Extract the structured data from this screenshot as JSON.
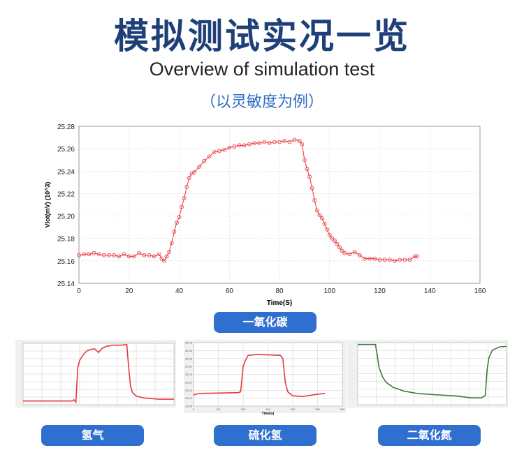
{
  "header": {
    "title": "模拟测试实况一览",
    "subtitle": "Overview of simulation test",
    "note": "（以灵敏度为例）"
  },
  "labels": {
    "main": "一氧化碳",
    "h2": "氢气",
    "h2s": "硫化氢",
    "no2": "二氧化氮"
  },
  "colors": {
    "title": "#1f3f78",
    "button": "#2f6fd0",
    "red_series": "#e8383d",
    "green_series": "#3d7a3a"
  },
  "chart_data": [
    {
      "type": "line",
      "marker": "circle-open",
      "xlabel": "Time(S)",
      "ylabel": "Vlot(mV) (10^3)",
      "xlim": [
        0,
        160
      ],
      "ylim": [
        25.14,
        25.28
      ],
      "grid": true,
      "xticks": [
        "0",
        "20",
        "40",
        "60",
        "80",
        "100",
        "120",
        "140",
        "160"
      ],
      "yticks": [
        "25.14",
        "25.16",
        "25.18",
        "25.20",
        "25.22",
        "25.24",
        "25.26",
        "25.28"
      ],
      "x": [
        0,
        2,
        4,
        6,
        8,
        10,
        12,
        14,
        16,
        18,
        20,
        22,
        24,
        26,
        28,
        30,
        32,
        33,
        34,
        35,
        36,
        37,
        38,
        39,
        40,
        41,
        42,
        43,
        44,
        45,
        46,
        48,
        50,
        52,
        54,
        56,
        58,
        60,
        62,
        64,
        66,
        68,
        70,
        72,
        74,
        76,
        78,
        80,
        82,
        84,
        86,
        88,
        89,
        90,
        91,
        92,
        93,
        94,
        95,
        96,
        97,
        98,
        99,
        100,
        101,
        102,
        103,
        104,
        105,
        106,
        108,
        110,
        112,
        114,
        116,
        118,
        120,
        122,
        124,
        126,
        128,
        130,
        132,
        134,
        135
      ],
      "y": [
        25.165,
        25.166,
        25.166,
        25.167,
        25.166,
        25.165,
        25.165,
        25.165,
        25.164,
        25.166,
        25.164,
        25.164,
        25.167,
        25.165,
        25.165,
        25.164,
        25.166,
        25.162,
        25.16,
        25.164,
        25.168,
        25.176,
        25.186,
        25.194,
        25.199,
        25.208,
        25.216,
        25.226,
        25.234,
        25.238,
        25.239,
        25.244,
        25.249,
        25.253,
        25.257,
        25.258,
        25.259,
        25.261,
        25.262,
        25.263,
        25.263,
        25.264,
        25.265,
        25.265,
        25.266,
        25.265,
        25.266,
        25.266,
        25.267,
        25.266,
        25.268,
        25.267,
        25.264,
        25.25,
        25.242,
        25.235,
        25.225,
        25.214,
        25.205,
        25.201,
        25.198,
        25.193,
        25.188,
        25.183,
        25.18,
        25.178,
        25.175,
        25.172,
        25.169,
        25.167,
        25.166,
        25.168,
        25.165,
        25.162,
        25.162,
        25.162,
        25.161,
        25.161,
        25.161,
        25.16,
        25.161,
        25.161,
        25.161,
        25.164,
        25.164
      ]
    },
    {
      "type": "line",
      "name_label": "氢气",
      "xlim": [
        0,
        40
      ],
      "ylim": [
        0,
        1
      ],
      "grid": true,
      "x": [
        0,
        13,
        13.5,
        14,
        14.5,
        15,
        16,
        17,
        18,
        19,
        20,
        21,
        22,
        24,
        26,
        27.5,
        28,
        28.5,
        29,
        30,
        32,
        34,
        36,
        40
      ],
      "y": [
        0.06,
        0.06,
        0.08,
        0.04,
        0.6,
        0.72,
        0.82,
        0.88,
        0.9,
        0.91,
        0.85,
        0.92,
        0.95,
        0.97,
        0.97,
        0.98,
        0.6,
        0.3,
        0.2,
        0.14,
        0.11,
        0.1,
        0.09,
        0.09
      ]
    },
    {
      "type": "line",
      "name_label": "硫化氢",
      "xlabel": "Time(s)",
      "xlim": [
        0,
        300
      ],
      "ylim": [
        25.05,
        25.45
      ],
      "grid": true,
      "xticks": [
        "0",
        "50",
        "100",
        "150",
        "200",
        "250",
        "300"
      ],
      "yticks": [
        "25.05",
        "25.10",
        "25.15",
        "25.20",
        "25.25",
        "25.30",
        "25.35",
        "25.40",
        "25.45"
      ],
      "x": [
        0,
        10,
        50,
        90,
        95,
        100,
        105,
        110,
        130,
        175,
        180,
        185,
        190,
        200,
        220,
        250,
        265
      ],
      "y": [
        25.12,
        25.13,
        25.132,
        25.135,
        25.14,
        25.3,
        25.34,
        25.37,
        25.375,
        25.37,
        25.35,
        25.2,
        25.14,
        25.115,
        25.11,
        25.125,
        25.13
      ]
    },
    {
      "type": "line",
      "name_label": "二氧化氮",
      "xlim": [
        0,
        42
      ],
      "ylim": [
        0,
        1
      ],
      "grid": true,
      "x": [
        0,
        5,
        5.5,
        6,
        7,
        8,
        10,
        13,
        17,
        22,
        28,
        32,
        35,
        36,
        36.5,
        37,
        38,
        40,
        42
      ],
      "y": [
        0.97,
        0.97,
        0.8,
        0.6,
        0.45,
        0.36,
        0.28,
        0.22,
        0.18,
        0.16,
        0.14,
        0.11,
        0.11,
        0.15,
        0.55,
        0.75,
        0.88,
        0.93,
        0.94
      ]
    }
  ]
}
